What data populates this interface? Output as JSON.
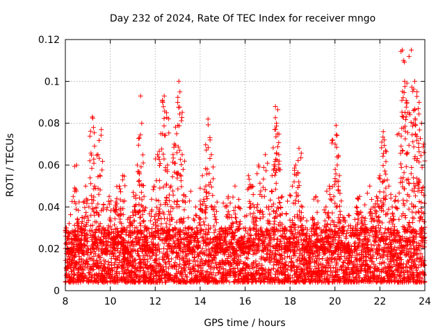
{
  "chart_data": {
    "type": "scatter",
    "title": "Day 232 of 2024, Rate Of TEC Index for receiver mngo",
    "xlabel": "GPS time / hours",
    "ylabel": "ROTI / TECUs",
    "xlim": [
      8,
      24
    ],
    "ylim": [
      0,
      0.12
    ],
    "xticks": [
      8,
      10,
      12,
      14,
      16,
      18,
      20,
      22,
      24
    ],
    "xtick_labels": [
      "8",
      "10",
      "12",
      "14",
      "16",
      "18",
      "20",
      "22",
      "24"
    ],
    "yticks": [
      0,
      0.02,
      0.04,
      0.06,
      0.08,
      0.1,
      0.12
    ],
    "ytick_labels": [
      "0",
      "0.02",
      "0.04",
      "0.06",
      "0.08",
      "0.1",
      "0.12"
    ],
    "grid": true,
    "marker": "plus",
    "color": "#ff0000",
    "series": [
      {
        "name": "ROTI",
        "x": [
          8.05,
          8.2,
          8.35,
          8.5,
          8.6,
          8.75,
          8.9,
          9.05,
          9.2,
          9.25,
          9.3,
          9.45,
          9.6,
          9.7,
          9.8,
          9.95,
          10.1,
          10.25,
          10.4,
          10.55,
          10.6,
          10.75,
          10.9,
          11.05,
          11.2,
          11.35,
          11.4,
          11.5,
          11.65,
          11.8,
          11.95,
          12.1,
          12.25,
          12.4,
          12.5,
          12.55,
          12.7,
          12.85,
          13.0,
          13.05,
          13.1,
          13.2,
          13.35,
          13.5,
          13.65,
          13.8,
          13.95,
          14.1,
          14.25,
          14.35,
          14.5,
          14.65,
          14.8,
          14.95,
          15.1,
          15.25,
          15.4,
          15.55,
          15.7,
          15.85,
          16.0,
          16.15,
          16.3,
          16.45,
          16.6,
          16.75,
          16.9,
          17.05,
          17.2,
          17.35,
          17.4,
          17.5,
          17.65,
          17.8,
          17.95,
          18.1,
          18.25,
          18.4,
          18.55,
          18.7,
          18.85,
          19.0,
          19.15,
          19.3,
          19.45,
          19.6,
          19.75,
          19.9,
          20.05,
          20.1,
          20.2,
          20.35,
          20.5,
          20.65,
          20.8,
          20.95,
          21.1,
          21.25,
          21.4,
          21.55,
          21.7,
          21.85,
          22.0,
          22.15,
          22.25,
          22.4,
          22.55,
          22.7,
          22.85,
          23.0,
          23.05,
          23.1,
          23.2,
          23.3,
          23.4,
          23.5,
          23.55,
          23.65,
          23.75,
          23.85,
          23.95
        ],
        "y": [
          0.03,
          0.02,
          0.045,
          0.06,
          0.025,
          0.035,
          0.05,
          0.04,
          0.083,
          0.078,
          0.05,
          0.065,
          0.077,
          0.03,
          0.02,
          0.045,
          0.025,
          0.04,
          0.05,
          0.055,
          0.03,
          0.02,
          0.035,
          0.045,
          0.06,
          0.093,
          0.08,
          0.045,
          0.03,
          0.02,
          0.05,
          0.065,
          0.075,
          0.093,
          0.085,
          0.06,
          0.05,
          0.07,
          0.09,
          0.1,
          0.095,
          0.065,
          0.045,
          0.03,
          0.02,
          0.04,
          0.035,
          0.055,
          0.05,
          0.082,
          0.065,
          0.04,
          0.025,
          0.03,
          0.02,
          0.045,
          0.035,
          0.05,
          0.04,
          0.025,
          0.03,
          0.055,
          0.05,
          0.035,
          0.06,
          0.045,
          0.065,
          0.04,
          0.055,
          0.088,
          0.08,
          0.065,
          0.045,
          0.03,
          0.025,
          0.05,
          0.06,
          0.068,
          0.04,
          0.03,
          0.025,
          0.035,
          0.045,
          0.03,
          0.025,
          0.04,
          0.05,
          0.072,
          0.079,
          0.06,
          0.055,
          0.035,
          0.025,
          0.02,
          0.03,
          0.04,
          0.045,
          0.035,
          0.03,
          0.05,
          0.04,
          0.045,
          0.055,
          0.076,
          0.067,
          0.05,
          0.04,
          0.045,
          0.075,
          0.115,
          0.11,
          0.1,
          0.09,
          0.085,
          0.115,
          0.08,
          0.1,
          0.095,
          0.09,
          0.08,
          0.07
        ],
        "baseline_min": 0.004,
        "baseline_max": 0.03
      }
    ]
  }
}
